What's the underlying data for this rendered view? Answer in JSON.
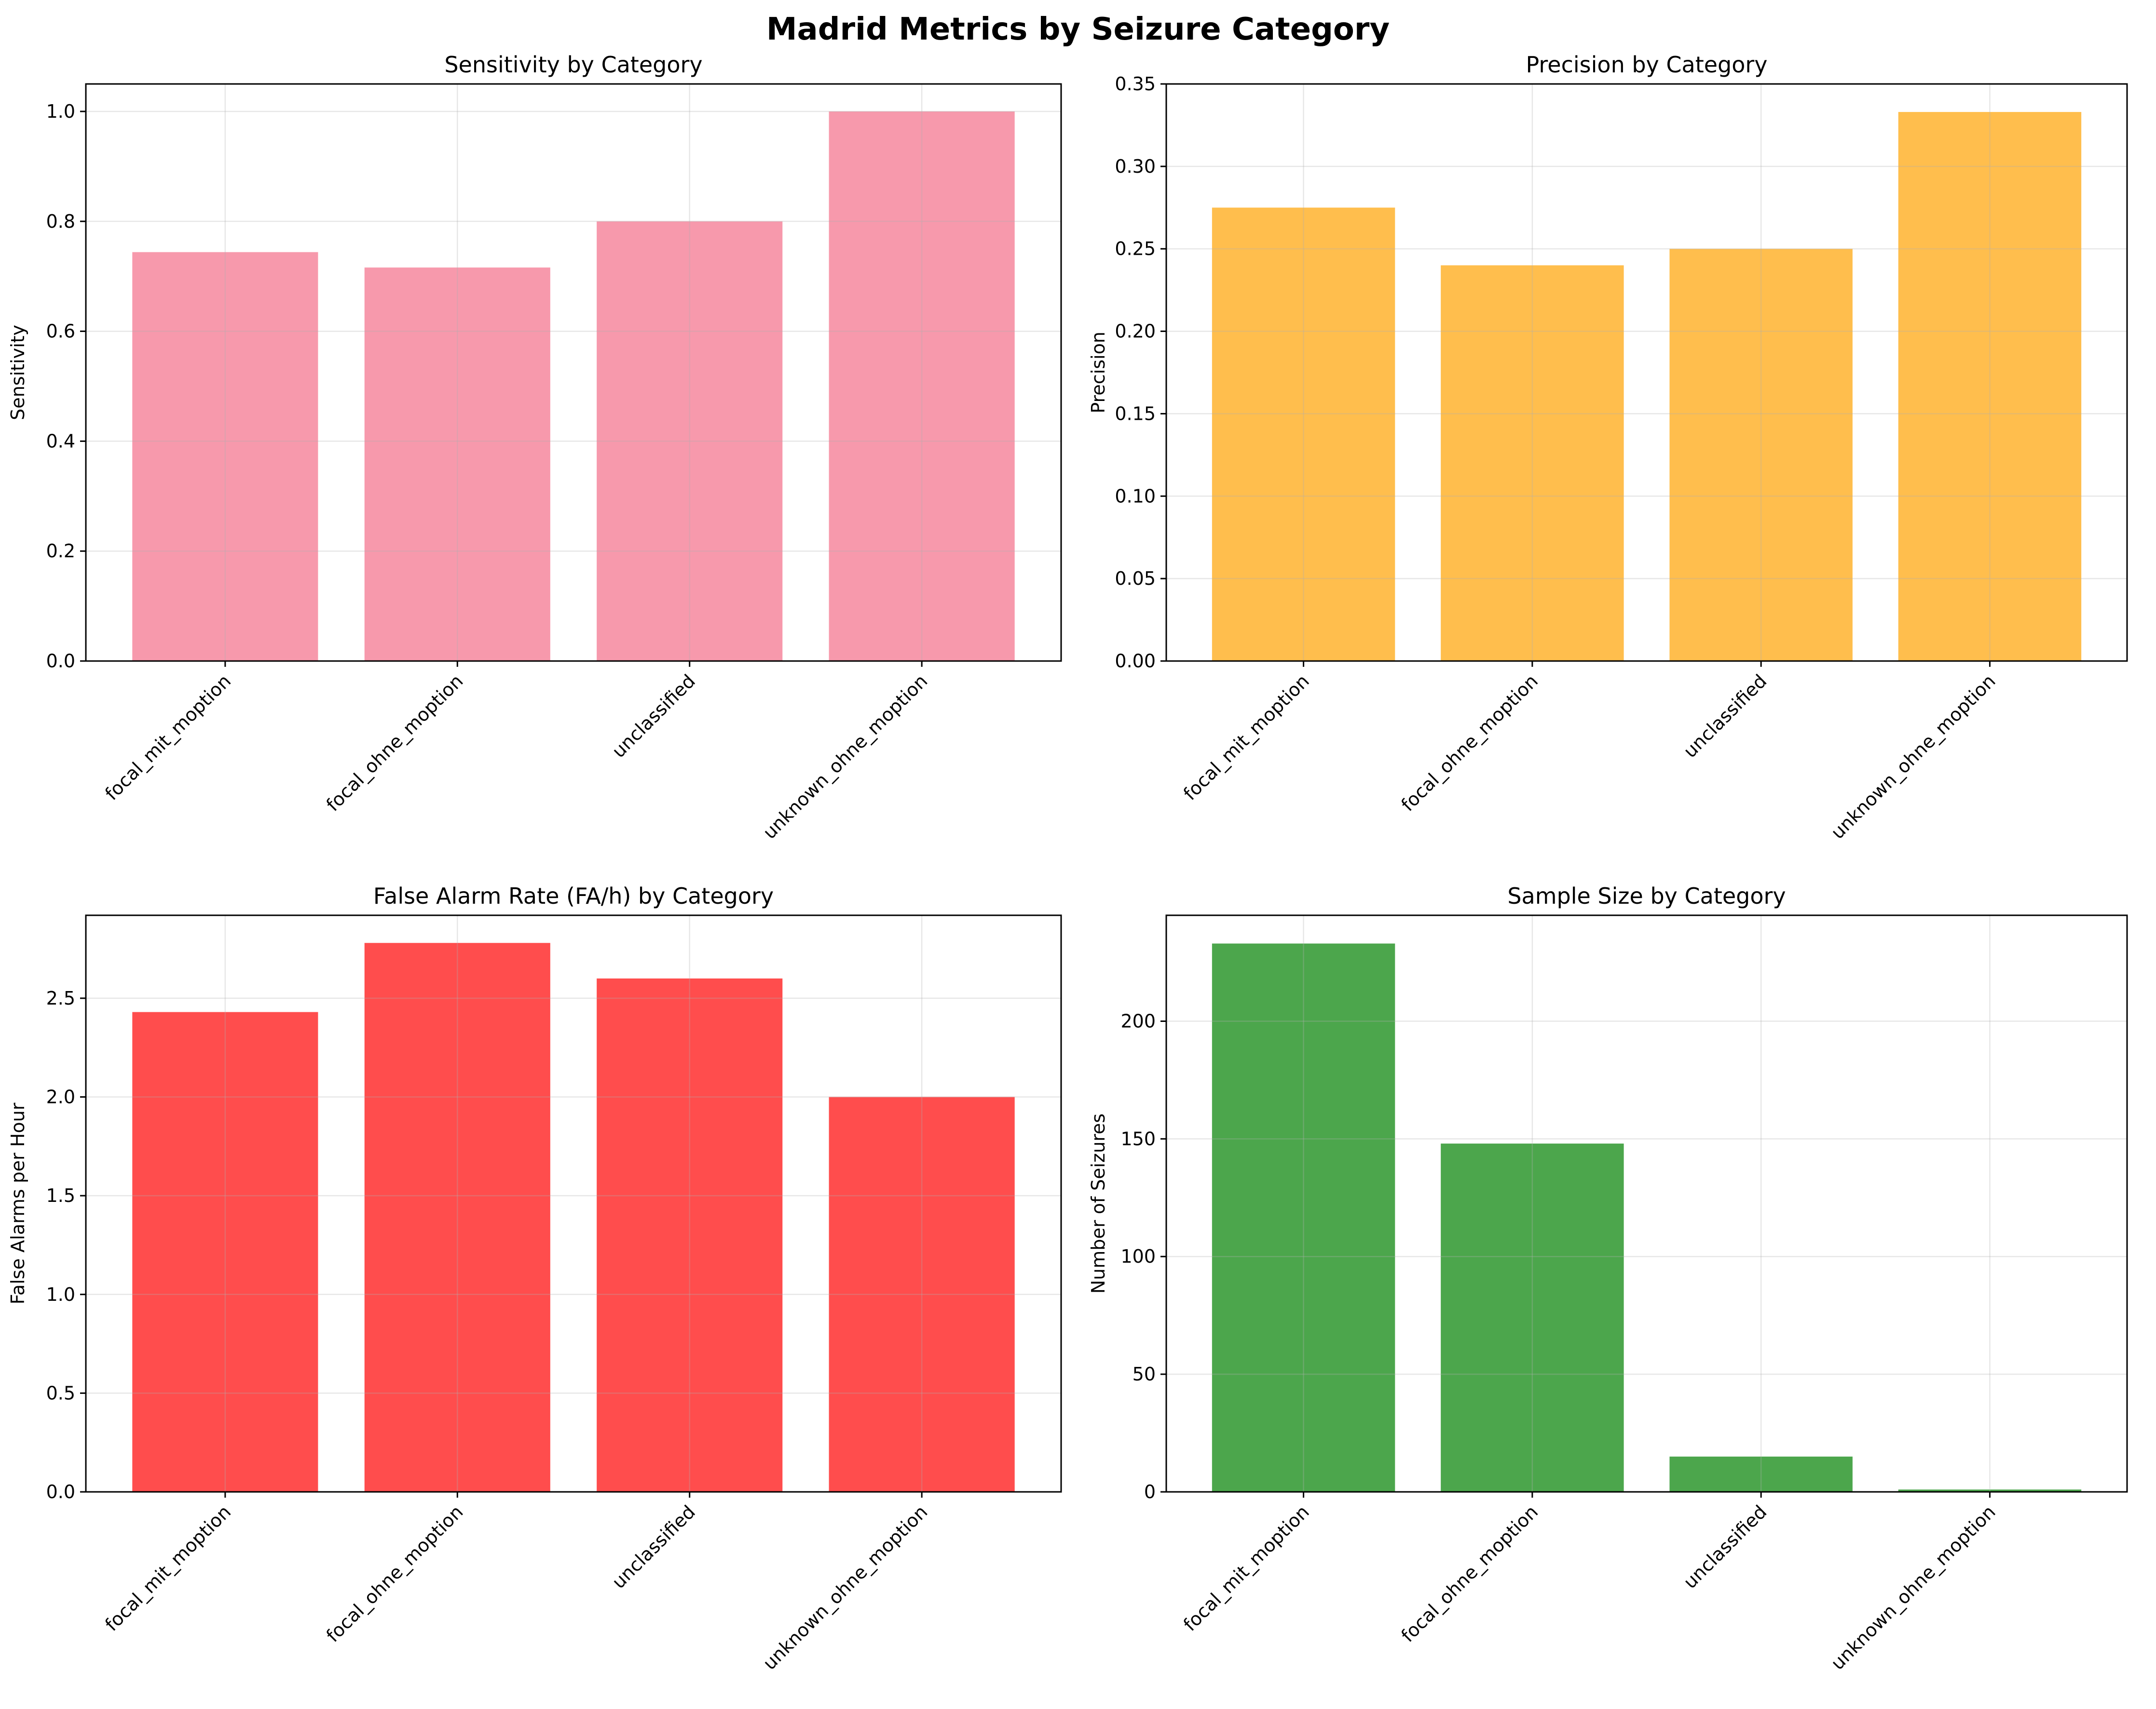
{
  "figure": {
    "suptitle": "Madrid Metrics by Seizure Category"
  },
  "chart_data": [
    {
      "type": "bar",
      "title": "Sensitivity by Category",
      "xlabel": "",
      "ylabel": "Sensitivity",
      "categories": [
        "focal_mit_moption",
        "focal_ohne_moption",
        "unclassified",
        "unknown_ohne_moption"
      ],
      "values": [
        0.744,
        0.716,
        0.8,
        1.0
      ],
      "ylim": [
        0,
        1.05
      ],
      "yticks": [
        0.0,
        0.2,
        0.4,
        0.6,
        0.8,
        1.0
      ],
      "ytick_labels": [
        "0.0",
        "0.2",
        "0.4",
        "0.6",
        "0.8",
        "1.0"
      ],
      "color": "#f799ac",
      "grid": true
    },
    {
      "type": "bar",
      "title": "Precision by Category",
      "xlabel": "",
      "ylabel": "Precision",
      "categories": [
        "focal_mit_moption",
        "focal_ohne_moption",
        "unclassified",
        "unknown_ohne_moption"
      ],
      "values": [
        0.275,
        0.24,
        0.25,
        0.333
      ],
      "ylim": [
        0,
        0.35
      ],
      "yticks": [
        0.0,
        0.05,
        0.1,
        0.15,
        0.2,
        0.25,
        0.3,
        0.35
      ],
      "ytick_labels": [
        "0.00",
        "0.05",
        "0.10",
        "0.15",
        "0.20",
        "0.25",
        "0.30",
        "0.35"
      ],
      "color": "#ffbe4d",
      "grid": true
    },
    {
      "type": "bar",
      "title": "False Alarm Rate (FA/h) by Category",
      "xlabel": "",
      "ylabel": "False Alarms per Hour",
      "categories": [
        "focal_mit_moption",
        "focal_ohne_moption",
        "unclassified",
        "unknown_ohne_moption"
      ],
      "values": [
        2.43,
        2.78,
        2.6,
        2.0
      ],
      "ylim": [
        0,
        2.92
      ],
      "yticks": [
        0.0,
        0.5,
        1.0,
        1.5,
        2.0,
        2.5
      ],
      "ytick_labels": [
        "0.0",
        "0.5",
        "1.0",
        "1.5",
        "2.0",
        "2.5"
      ],
      "color": "#ff4d4d",
      "grid": true
    },
    {
      "type": "bar",
      "title": "Sample Size by Category",
      "xlabel": "",
      "ylabel": "Number of Seizures",
      "categories": [
        "focal_mit_moption",
        "focal_ohne_moption",
        "unclassified",
        "unknown_ohne_moption"
      ],
      "values": [
        233,
        148,
        15,
        1
      ],
      "ylim": [
        0,
        245
      ],
      "yticks": [
        0,
        50,
        100,
        150,
        200
      ],
      "ytick_labels": [
        "0",
        "50",
        "100",
        "150",
        "200"
      ],
      "color": "#4ca64c",
      "grid": true
    }
  ]
}
